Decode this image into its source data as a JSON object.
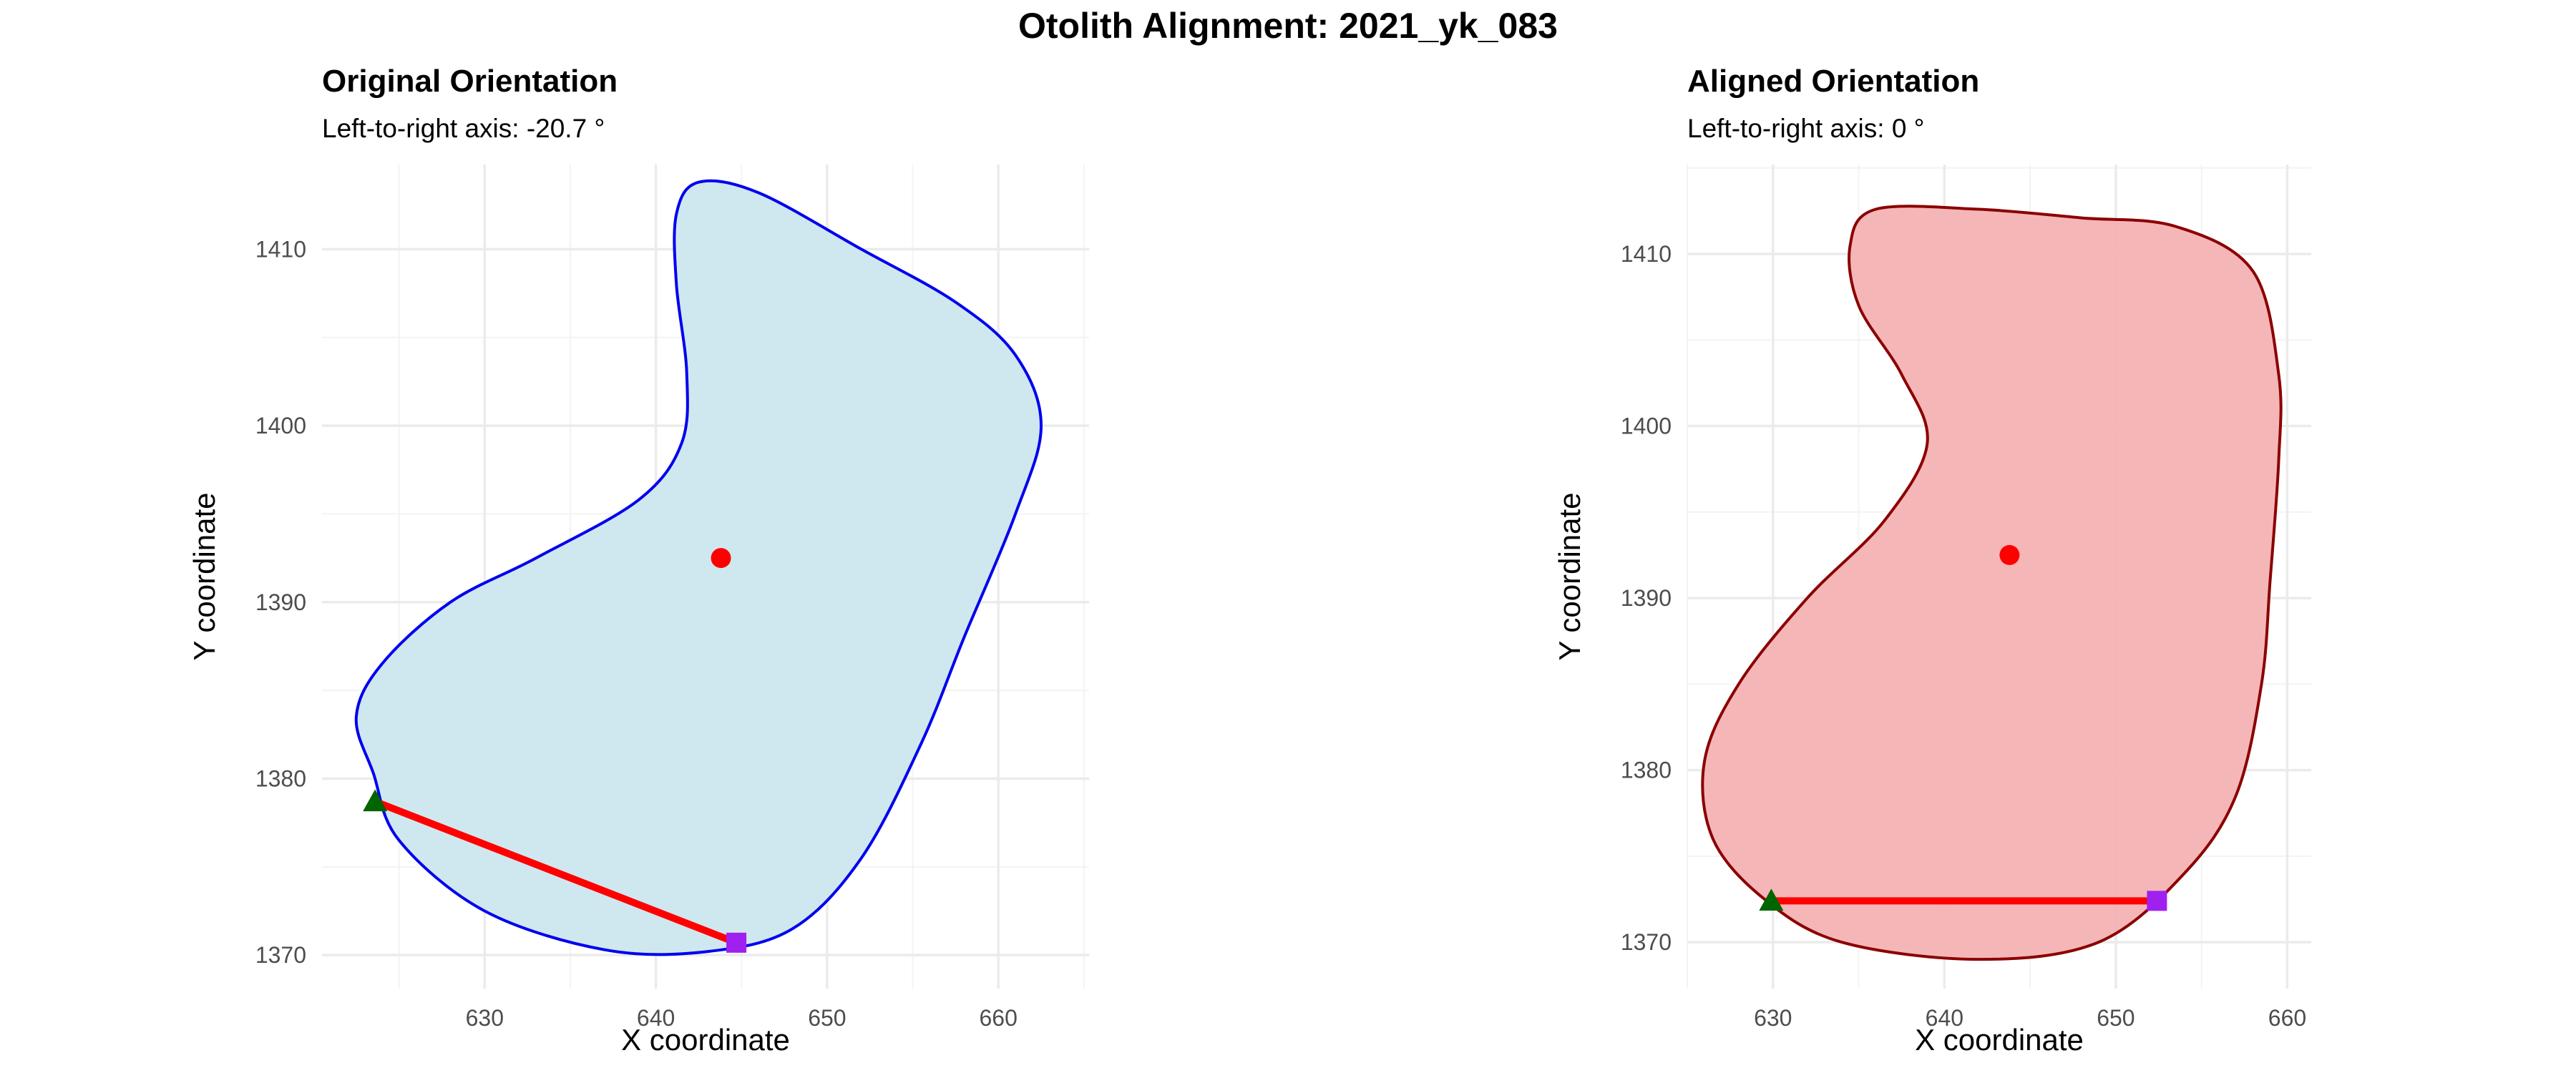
{
  "figure": {
    "title": "Otolith Alignment: 2021_yk_083"
  },
  "chart_data": [
    {
      "type": "scatter",
      "title": "Original Orientation",
      "subtitle": "Left-to-right axis: -20.7 °",
      "xlabel": "X coordinate",
      "ylabel": "Y coordinate",
      "xlim": [
        620.5,
        665.3
      ],
      "ylim": [
        1368.1,
        1414.8
      ],
      "xticks": [
        630,
        640,
        650,
        660
      ],
      "yticks": [
        1370,
        1380,
        1390,
        1400,
        1410
      ],
      "grid": true,
      "outline": {
        "fill": "#cce7ef",
        "stroke": "#0000ee",
        "points": [
          [
            623.5,
            1380.3
          ],
          [
            622.5,
            1383.5
          ],
          [
            624,
            1386.5
          ],
          [
            628,
            1390
          ],
          [
            633,
            1392.5
          ],
          [
            639,
            1395.8
          ],
          [
            641.5,
            1399
          ],
          [
            641.8,
            1403
          ],
          [
            641.2,
            1408
          ],
          [
            641.2,
            1412
          ],
          [
            642.5,
            1413.8
          ],
          [
            646,
            1413.2
          ],
          [
            652,
            1410
          ],
          [
            657.5,
            1407
          ],
          [
            661,
            1404
          ],
          [
            662.5,
            1400
          ],
          [
            661,
            1395
          ],
          [
            658,
            1388
          ],
          [
            655.5,
            1382
          ],
          [
            652,
            1375.5
          ],
          [
            648,
            1371.5
          ],
          [
            643,
            1370.2
          ],
          [
            637,
            1370.3
          ],
          [
            630,
            1372.5
          ],
          [
            625,
            1376.5
          ]
        ]
      },
      "centroid": {
        "x": 643.8,
        "y": 1392.5,
        "color": "#ff0000"
      },
      "axis_line": {
        "x": [
          623.6,
          644.7
        ],
        "y": [
          1378.7,
          1370.7
        ],
        "color": "#ff0000"
      },
      "start_point": {
        "x": 623.6,
        "y": 1378.7,
        "color": "#006400",
        "marker": "triangle"
      },
      "end_point": {
        "x": 644.7,
        "y": 1370.7,
        "color": "#a020f0",
        "marker": "square"
      }
    },
    {
      "type": "scatter",
      "title": "Aligned Orientation",
      "subtitle": "Left-to-right axis: 0 °",
      "xlabel": "X coordinate",
      "ylabel": "Y coordinate",
      "xlim": [
        625,
        661.4
      ],
      "ylim": [
        1367.3,
        1415.2
      ],
      "xticks": [
        630,
        640,
        650,
        660
      ],
      "yticks": [
        1370,
        1380,
        1390,
        1400,
        1410
      ],
      "grid": true,
      "outline": {
        "fill": "#f4b2b4",
        "stroke": "#8b0000",
        "points": [
          [
            629.5,
            1372.5
          ],
          [
            626.5,
            1376
          ],
          [
            626,
            1380.5
          ],
          [
            628,
            1385
          ],
          [
            632,
            1390
          ],
          [
            636.5,
            1394.5
          ],
          [
            639,
            1399
          ],
          [
            637.5,
            1403
          ],
          [
            635,
            1407
          ],
          [
            634.5,
            1410.5
          ],
          [
            636,
            1412.6
          ],
          [
            642,
            1412.6
          ],
          [
            648,
            1412.1
          ],
          [
            653.5,
            1411.6
          ],
          [
            658,
            1409
          ],
          [
            659.5,
            1403
          ],
          [
            659.5,
            1398
          ],
          [
            659,
            1391
          ],
          [
            658.5,
            1385
          ],
          [
            657,
            1378.5
          ],
          [
            654,
            1374
          ],
          [
            649,
            1370
          ],
          [
            642,
            1369
          ],
          [
            634,
            1370
          ]
        ]
      },
      "centroid": {
        "x": 643.8,
        "y": 1392.5,
        "color": "#ff0000"
      },
      "axis_line": {
        "x": [
          629.9,
          652.4
        ],
        "y": [
          1372.4,
          1372.4
        ],
        "color": "#ff0000"
      },
      "start_point": {
        "x": 629.9,
        "y": 1372.4,
        "color": "#006400",
        "marker": "triangle"
      },
      "end_point": {
        "x": 652.4,
        "y": 1372.4,
        "color": "#a020f0",
        "marker": "square"
      }
    }
  ]
}
